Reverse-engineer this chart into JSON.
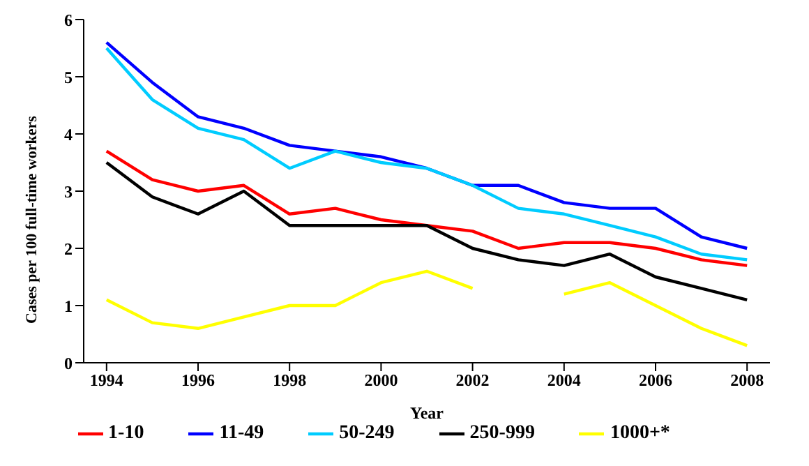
{
  "chart_data": {
    "type": "line",
    "xlabel": "Year",
    "ylabel": "Cases per 100 full-time workers",
    "x": [
      1994,
      1995,
      1996,
      1997,
      1998,
      1999,
      2000,
      2001,
      2002,
      2003,
      2004,
      2005,
      2006,
      2007,
      2008
    ],
    "xlim": [
      1993.5,
      2008.5
    ],
    "xticks": [
      1994,
      1996,
      1998,
      2000,
      2002,
      2004,
      2006,
      2008
    ],
    "ylim": [
      0,
      6
    ],
    "yticks": [
      0,
      1,
      2,
      3,
      4,
      5,
      6
    ],
    "grid": false,
    "legend": "bottom",
    "marker": "none",
    "line_style": "solid",
    "series": [
      {
        "name": "1-10",
        "color": "#ff0000",
        "values": [
          3.7,
          3.2,
          3.0,
          3.1,
          2.6,
          2.7,
          2.5,
          2.4,
          2.3,
          2.0,
          2.1,
          2.1,
          2.0,
          1.8,
          1.7
        ]
      },
      {
        "name": "11-49",
        "color": "#0000ff",
        "values": [
          5.6,
          4.9,
          4.3,
          4.1,
          3.8,
          3.7,
          3.6,
          3.4,
          3.1,
          3.1,
          2.8,
          2.7,
          2.7,
          2.2,
          2.0
        ]
      },
      {
        "name": "50-249",
        "color": "#00ccff",
        "values": [
          5.5,
          4.6,
          4.1,
          3.9,
          3.4,
          3.7,
          3.5,
          3.4,
          3.1,
          2.7,
          2.6,
          2.4,
          2.2,
          1.9,
          1.8
        ]
      },
      {
        "name": "250-999",
        "color": "#000000",
        "values": [
          3.5,
          2.9,
          2.6,
          3.0,
          2.4,
          2.4,
          2.4,
          2.4,
          2.0,
          1.8,
          1.7,
          1.9,
          1.5,
          1.3,
          1.1
        ]
      },
      {
        "name": "1000+*",
        "color": "#ffff00",
        "values": [
          1.1,
          0.7,
          0.6,
          0.8,
          1.0,
          1.0,
          1.4,
          1.6,
          1.3,
          null,
          1.2,
          1.4,
          1.0,
          0.6,
          0.3
        ]
      }
    ]
  }
}
